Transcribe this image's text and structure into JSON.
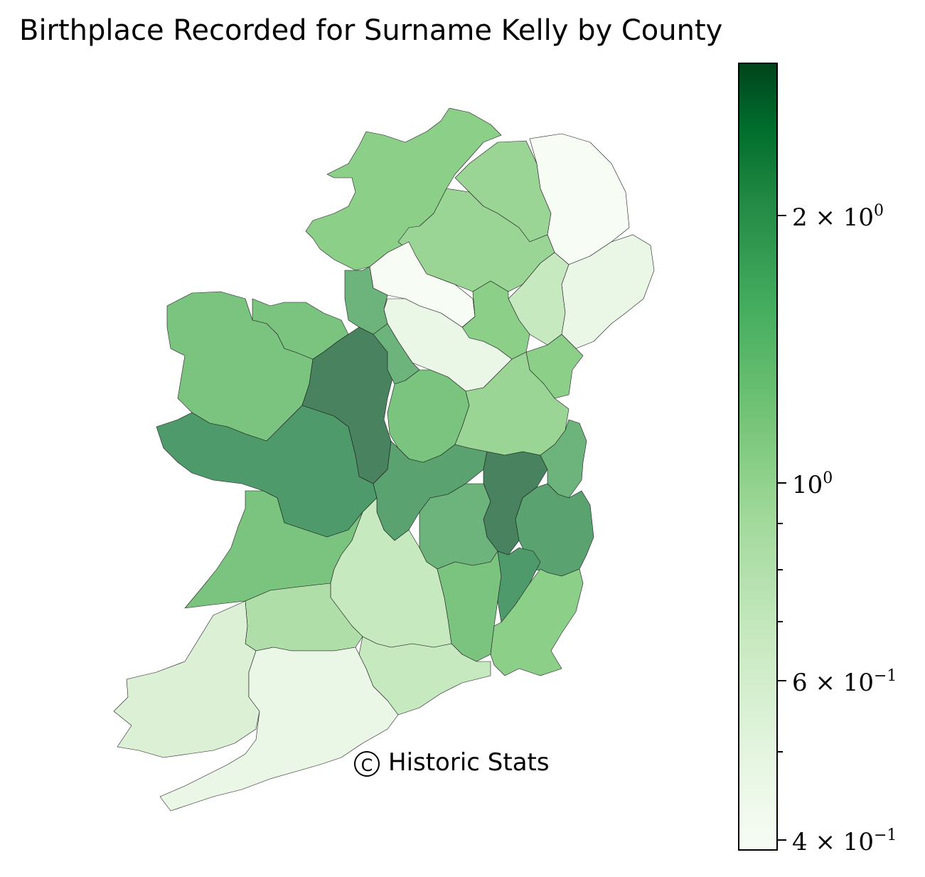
{
  "title": "Birthplace Recorded for Surname Kelly by County",
  "credit": "Historic Stats",
  "credit_symbol": "C",
  "colorbar": {
    "scale": "log",
    "colormap": "Greens",
    "range": [
      0.39,
      3.3
    ],
    "ticks": [
      {
        "base": "2 × 10",
        "exp": "0"
      },
      {
        "base": "10",
        "exp": "0"
      },
      {
        "base": "6 × 10",
        "exp": "−1"
      },
      {
        "base": "4 × 10",
        "exp": "−1"
      }
    ]
  },
  "colors": {
    "level_0": "#f7fcf5",
    "level_1": "#eaf7e6",
    "level_2": "#dcf0d6",
    "level_3": "#c7e9c0",
    "level_4": "#b0dea8",
    "level_5": "#9ad595",
    "level_6": "#8ccf89",
    "level_7": "#7bc47f",
    "level_8": "#6cb37c",
    "level_9": "#5aa26f",
    "level_10": "#4e9a6a",
    "level_11": "#48825f"
  },
  "regions": [
    {
      "name": "Donegal",
      "level": 6
    },
    {
      "name": "Derry",
      "level": 5
    },
    {
      "name": "Antrim",
      "level": 0
    },
    {
      "name": "Tyrone",
      "level": 5
    },
    {
      "name": "Fermanagh",
      "level": 0
    },
    {
      "name": "Armagh",
      "level": 3
    },
    {
      "name": "Down",
      "level": 1
    },
    {
      "name": "Monaghan",
      "level": 6
    },
    {
      "name": "Cavan",
      "level": 1
    },
    {
      "name": "Louth",
      "level": 6
    },
    {
      "name": "Sligo",
      "level": 7
    },
    {
      "name": "Leitrim",
      "level": 8
    },
    {
      "name": "Mayo",
      "level": 7
    },
    {
      "name": "Roscommon",
      "level": 11
    },
    {
      "name": "Longford",
      "level": 8
    },
    {
      "name": "Westmeath",
      "level": 7
    },
    {
      "name": "Meath",
      "level": 5
    },
    {
      "name": "Galway",
      "level": 10
    },
    {
      "name": "Offaly",
      "level": 9
    },
    {
      "name": "Kildare",
      "level": 11
    },
    {
      "name": "Dublin",
      "level": 8
    },
    {
      "name": "Laois",
      "level": 8
    },
    {
      "name": "Wicklow",
      "level": 9
    },
    {
      "name": "Clare",
      "level": 7
    },
    {
      "name": "Tipperary",
      "level": 3
    },
    {
      "name": "Kilkenny",
      "level": 7
    },
    {
      "name": "Carlow",
      "level": 10
    },
    {
      "name": "Wexford",
      "level": 6
    },
    {
      "name": "Limerick",
      "level": 4
    },
    {
      "name": "Waterford",
      "level": 3
    },
    {
      "name": "Kerry",
      "level": 2
    },
    {
      "name": "Cork",
      "level": 1
    }
  ]
}
